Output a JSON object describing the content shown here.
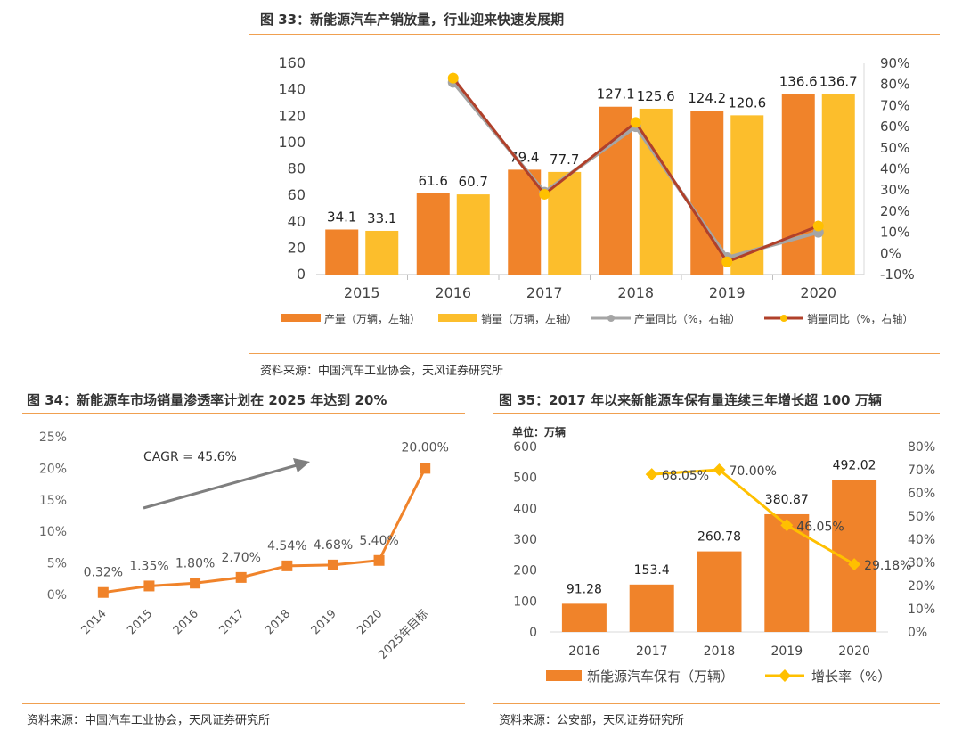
{
  "colors": {
    "orange": "#F0832A",
    "yellow": "#FCBE2C",
    "gray_line": "#A5A5A5",
    "red_line": "#B0402A",
    "dot_yellow": "#FFC000",
    "gray_arrow": "#7F7F7F",
    "rule": "#F0A050"
  },
  "fig33": {
    "title": "图 33：新能源汽车产销放量，行业迎来快速发展期",
    "source": "资料来源：中国汽车工业协会，天风证券研究所"
  },
  "fig34": {
    "title": "图 34：新能源车市场销量渗透率计划在 2025 年达到 20%",
    "source": "资料来源：中国汽车工业协会，天风证券研究所",
    "annotation": "CAGR = 45.6%"
  },
  "fig35": {
    "title": "图 35：2017 年以来新能源车保有量连续三年增长超 100 万辆",
    "source": "资料来源：公安部，天风证券研究所",
    "unit_label": "单位：万辆"
  },
  "chart_data": [
    {
      "id": "fig33",
      "type": "bar",
      "categories": [
        "2015",
        "2016",
        "2017",
        "2018",
        "2019",
        "2020"
      ],
      "ylim": [
        0,
        160
      ],
      "yticks": [
        0,
        20,
        40,
        60,
        80,
        100,
        120,
        140,
        160
      ],
      "y2lim": [
        -0.1,
        0.9
      ],
      "y2ticks": [
        "-10%",
        "0%",
        "10%",
        "20%",
        "30%",
        "40%",
        "50%",
        "60%",
        "70%",
        "80%",
        "90%"
      ],
      "series": [
        {
          "name": "产量（万辆，左轴）",
          "type": "bar",
          "axis": "left",
          "values": [
            34.1,
            61.6,
            79.4,
            127.1,
            124.2,
            136.6
          ],
          "labels": [
            "34.1",
            "61.6",
            "79.4",
            "127.1",
            "124.2",
            "136.6"
          ]
        },
        {
          "name": "销量（万辆，左轴）",
          "type": "bar",
          "axis": "left",
          "values": [
            33.1,
            60.7,
            77.7,
            125.6,
            120.6,
            136.7
          ],
          "labels": [
            "33.1",
            "60.7",
            "77.7",
            "125.6",
            "120.6",
            "136.7"
          ]
        },
        {
          "name": "产量同比（%，右轴）",
          "type": "line",
          "axis": "right",
          "values": [
            null,
            0.81,
            0.29,
            0.6,
            -0.02,
            0.1
          ]
        },
        {
          "name": "销量同比（%，右轴）",
          "type": "line",
          "axis": "right",
          "values": [
            null,
            0.83,
            0.28,
            0.62,
            -0.04,
            0.13
          ]
        }
      ],
      "legend": "bottom",
      "grid": false
    },
    {
      "id": "fig34",
      "type": "line",
      "categories": [
        "2014",
        "2015",
        "2016",
        "2017",
        "2018",
        "2019",
        "2020",
        "2025年目标"
      ],
      "ylim": [
        0,
        0.25
      ],
      "yticks": [
        "0%",
        "5%",
        "10%",
        "15%",
        "20%",
        "25%"
      ],
      "values": [
        0.0032,
        0.0135,
        0.018,
        0.027,
        0.0454,
        0.0468,
        0.054,
        0.2
      ],
      "labels": [
        "0.32%",
        "1.35%",
        "1.80%",
        "2.70%",
        "4.54%",
        "4.68%",
        "5.40%",
        "20.00%"
      ],
      "grid": false
    },
    {
      "id": "fig35",
      "type": "bar",
      "categories": [
        "2016",
        "2017",
        "2018",
        "2019",
        "2020"
      ],
      "ylim": [
        0,
        600
      ],
      "yticks": [
        0,
        100,
        200,
        300,
        400,
        500,
        600
      ],
      "y2lim": [
        0,
        0.8
      ],
      "y2ticks": [
        "0%",
        "10%",
        "20%",
        "30%",
        "40%",
        "50%",
        "60%",
        "70%",
        "80%"
      ],
      "series": [
        {
          "name": "新能源汽车保有（万辆）",
          "type": "bar",
          "axis": "left",
          "values": [
            91.28,
            153.4,
            260.78,
            380.87,
            492.02
          ],
          "labels": [
            "91.28",
            "153.4",
            "260.78",
            "380.87",
            "492.02"
          ]
        },
        {
          "name": "增长率（%）",
          "type": "line",
          "axis": "right",
          "values": [
            null,
            0.6805,
            0.7,
            0.4605,
            0.2918
          ],
          "labels": [
            "",
            "68.05%",
            "70.00%",
            "46.05%",
            "29.18%"
          ]
        }
      ],
      "legend": "bottom",
      "grid": false
    }
  ]
}
